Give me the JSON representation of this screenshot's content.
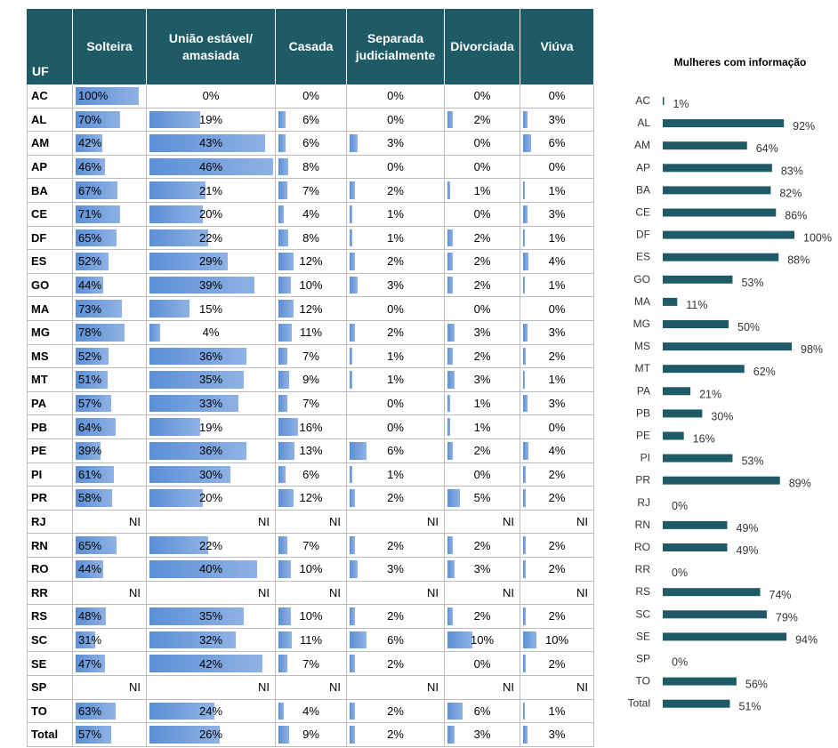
{
  "table": {
    "headers": [
      "UF",
      "Solteira",
      "União estável/ amasiada",
      "Casada",
      "Separada judicialmente",
      "Divorciada",
      "Viúva"
    ],
    "rows": [
      {
        "uf": "AC",
        "values": [
          100,
          0,
          0,
          0,
          0,
          0
        ],
        "value_labels": [
          "100%",
          "0%",
          "0%",
          "0%",
          "0%",
          "0%"
        ]
      },
      {
        "uf": "AL",
        "values": [
          70,
          19,
          6,
          0,
          2,
          3
        ],
        "value_labels": [
          "70%",
          "19%",
          "6%",
          "0%",
          "2%",
          "3%"
        ]
      },
      {
        "uf": "AM",
        "values": [
          42,
          43,
          6,
          3,
          0,
          6
        ],
        "value_labels": [
          "42%",
          "43%",
          "6%",
          "3%",
          "0%",
          "6%"
        ]
      },
      {
        "uf": "AP",
        "values": [
          46,
          46,
          8,
          0,
          0,
          0
        ],
        "value_labels": [
          "46%",
          "46%",
          "8%",
          "0%",
          "0%",
          "0%"
        ]
      },
      {
        "uf": "BA",
        "values": [
          67,
          21,
          7,
          2,
          1,
          1
        ],
        "value_labels": [
          "67%",
          "21%",
          "7%",
          "2%",
          "1%",
          "1%"
        ]
      },
      {
        "uf": "CE",
        "values": [
          71,
          20,
          4,
          1,
          0,
          3
        ],
        "value_labels": [
          "71%",
          "20%",
          "4%",
          "1%",
          "0%",
          "3%"
        ]
      },
      {
        "uf": "DF",
        "values": [
          65,
          22,
          8,
          1,
          2,
          1
        ],
        "value_labels": [
          "65%",
          "22%",
          "8%",
          "1%",
          "2%",
          "1%"
        ]
      },
      {
        "uf": "ES",
        "values": [
          52,
          29,
          12,
          2,
          2,
          4
        ],
        "value_labels": [
          "52%",
          "29%",
          "12%",
          "2%",
          "2%",
          "4%"
        ]
      },
      {
        "uf": "GO",
        "values": [
          44,
          39,
          10,
          3,
          2,
          1
        ],
        "value_labels": [
          "44%",
          "39%",
          "10%",
          "3%",
          "2%",
          "1%"
        ]
      },
      {
        "uf": "MA",
        "values": [
          73,
          15,
          12,
          0,
          0,
          0
        ],
        "value_labels": [
          "73%",
          "15%",
          "12%",
          "0%",
          "0%",
          "0%"
        ]
      },
      {
        "uf": "MG",
        "values": [
          78,
          4,
          11,
          2,
          3,
          3
        ],
        "value_labels": [
          "78%",
          "4%",
          "11%",
          "2%",
          "3%",
          "3%"
        ]
      },
      {
        "uf": "MS",
        "values": [
          52,
          36,
          7,
          1,
          2,
          2
        ],
        "value_labels": [
          "52%",
          "36%",
          "7%",
          "1%",
          "2%",
          "2%"
        ]
      },
      {
        "uf": "MT",
        "values": [
          51,
          35,
          9,
          1,
          3,
          1
        ],
        "value_labels": [
          "51%",
          "35%",
          "9%",
          "1%",
          "3%",
          "1%"
        ]
      },
      {
        "uf": "PA",
        "values": [
          57,
          33,
          7,
          0,
          1,
          3
        ],
        "value_labels": [
          "57%",
          "33%",
          "7%",
          "0%",
          "1%",
          "3%"
        ]
      },
      {
        "uf": "PB",
        "values": [
          64,
          19,
          16,
          0,
          1,
          0
        ],
        "value_labels": [
          "64%",
          "19%",
          "16%",
          "0%",
          "1%",
          "0%"
        ]
      },
      {
        "uf": "PE",
        "values": [
          39,
          36,
          13,
          6,
          2,
          4
        ],
        "value_labels": [
          "39%",
          "36%",
          "13%",
          "6%",
          "2%",
          "4%"
        ]
      },
      {
        "uf": "PI",
        "values": [
          61,
          30,
          6,
          1,
          0,
          2
        ],
        "value_labels": [
          "61%",
          "30%",
          "6%",
          "1%",
          "0%",
          "2%"
        ]
      },
      {
        "uf": "PR",
        "values": [
          58,
          20,
          12,
          2,
          5,
          2
        ],
        "value_labels": [
          "58%",
          "20%",
          "12%",
          "2%",
          "5%",
          "2%"
        ]
      },
      {
        "uf": "RJ",
        "values": [
          null,
          null,
          null,
          null,
          null,
          null
        ],
        "value_labels": [
          "NI",
          "NI",
          "NI",
          "NI",
          "NI",
          "NI"
        ]
      },
      {
        "uf": "RN",
        "values": [
          65,
          22,
          7,
          2,
          2,
          2
        ],
        "value_labels": [
          "65%",
          "22%",
          "7%",
          "2%",
          "2%",
          "2%"
        ]
      },
      {
        "uf": "RO",
        "values": [
          44,
          40,
          10,
          3,
          3,
          2
        ],
        "value_labels": [
          "44%",
          "40%",
          "10%",
          "3%",
          "3%",
          "2%"
        ]
      },
      {
        "uf": "RR",
        "values": [
          null,
          null,
          null,
          null,
          null,
          null
        ],
        "value_labels": [
          "NI",
          "NI",
          "NI",
          "NI",
          "NI",
          "NI"
        ]
      },
      {
        "uf": "RS",
        "values": [
          48,
          35,
          10,
          2,
          2,
          2
        ],
        "value_labels": [
          "48%",
          "35%",
          "10%",
          "2%",
          "2%",
          "2%"
        ]
      },
      {
        "uf": "SC",
        "values": [
          31,
          32,
          11,
          6,
          10,
          10
        ],
        "value_labels": [
          "31%",
          "32%",
          "11%",
          "6%",
          "10%",
          "10%"
        ]
      },
      {
        "uf": "SE",
        "values": [
          47,
          42,
          7,
          2,
          0,
          2
        ],
        "value_labels": [
          "47%",
          "42%",
          "7%",
          "2%",
          "0%",
          "2%"
        ]
      },
      {
        "uf": "SP",
        "values": [
          null,
          null,
          null,
          null,
          null,
          null
        ],
        "value_labels": [
          "NI",
          "NI",
          "NI",
          "NI",
          "NI",
          "NI"
        ]
      },
      {
        "uf": "TO",
        "values": [
          63,
          24,
          4,
          2,
          6,
          1
        ],
        "value_labels": [
          "63%",
          "24%",
          "4%",
          "2%",
          "6%",
          "1%"
        ]
      },
      {
        "uf": "Total",
        "values": [
          57,
          26,
          9,
          2,
          3,
          3
        ],
        "value_labels": [
          "57%",
          "26%",
          "9%",
          "2%",
          "3%",
          "3%"
        ]
      }
    ]
  },
  "chart_data": {
    "type": "bar",
    "orientation": "horizontal",
    "title": "Mulheres com informação",
    "color": "#1f5b66",
    "categories": [
      "AC",
      "AL",
      "AM",
      "AP",
      "BA",
      "CE",
      "DF",
      "ES",
      "GO",
      "MA",
      "MG",
      "MS",
      "MT",
      "PA",
      "PB",
      "PE",
      "PI",
      "PR",
      "RJ",
      "RN",
      "RO",
      "RR",
      "RS",
      "SC",
      "SE",
      "SP",
      "TO",
      "Total"
    ],
    "values": [
      1,
      92,
      64,
      83,
      82,
      86,
      100,
      88,
      53,
      11,
      50,
      98,
      62,
      21,
      30,
      16,
      53,
      89,
      0,
      49,
      49,
      0,
      74,
      79,
      94,
      0,
      56,
      51
    ],
    "value_labels": [
      "1%",
      "92%",
      "64%",
      "83%",
      "82%",
      "86%",
      "100%",
      "88%",
      "53%",
      "11%",
      "50%",
      "98%",
      "62%",
      "21%",
      "30%",
      "16%",
      "53%",
      "89%",
      "0%",
      "49%",
      "49%",
      "0%",
      "74%",
      "79%",
      "94%",
      "0%",
      "56%",
      "51%"
    ]
  }
}
